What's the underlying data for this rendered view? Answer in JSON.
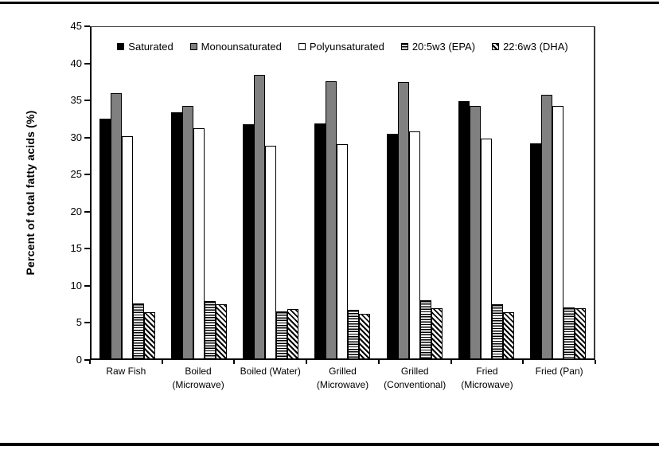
{
  "chart_data": {
    "type": "bar",
    "title": "",
    "xlabel": "",
    "ylabel": "Percent of total fatty acids (%)",
    "ylim": [
      0,
      45
    ],
    "yticks": [
      0,
      5,
      10,
      15,
      20,
      25,
      30,
      35,
      40,
      45
    ],
    "grid": false,
    "legend_position": "inside-top",
    "categories": [
      "Raw Fish",
      "Boiled (Microwave)",
      "Boiled (Water)",
      "Grilled (Microwave)",
      "Grilled (Conventional)",
      "Fried (Microwave)",
      "Fried (Pan)"
    ],
    "category_label_lines": [
      [
        "Raw Fish"
      ],
      [
        "Boiled",
        "(Microwave)"
      ],
      [
        "Boiled (Water)"
      ],
      [
        "Grilled",
        "(Microwave)"
      ],
      [
        "Grilled",
        "(Conventional)"
      ],
      [
        "Fried",
        "(Microwave)"
      ],
      [
        "Fried (Pan)"
      ]
    ],
    "series": [
      {
        "name": "Saturated",
        "style": "solid-black",
        "fill": "#000000",
        "values": [
          32.3,
          33.2,
          31.6,
          31.7,
          30.3,
          34.7,
          29.0
        ]
      },
      {
        "name": "Monounsaturated",
        "style": "solid-gray",
        "fill": "#808080",
        "values": [
          35.8,
          34.0,
          38.2,
          37.4,
          37.3,
          34.0,
          35.6
        ]
      },
      {
        "name": "Polyunsaturated",
        "style": "solid-white",
        "fill": "#ffffff",
        "values": [
          30.0,
          31.0,
          28.7,
          28.9,
          30.6,
          29.6,
          34.0
        ]
      },
      {
        "name": "20:5w3 (EPA)",
        "style": "hatch-horizontal",
        "fill": "#ffffff",
        "values": [
          7.4,
          7.7,
          6.3,
          6.6,
          7.8,
          7.3,
          6.9
        ]
      },
      {
        "name": "22:6w3 (DHA)",
        "style": "hatch-diagonal",
        "fill": "#ffffff",
        "values": [
          6.2,
          7.3,
          6.7,
          6.0,
          6.8,
          6.2,
          6.8
        ]
      }
    ]
  }
}
